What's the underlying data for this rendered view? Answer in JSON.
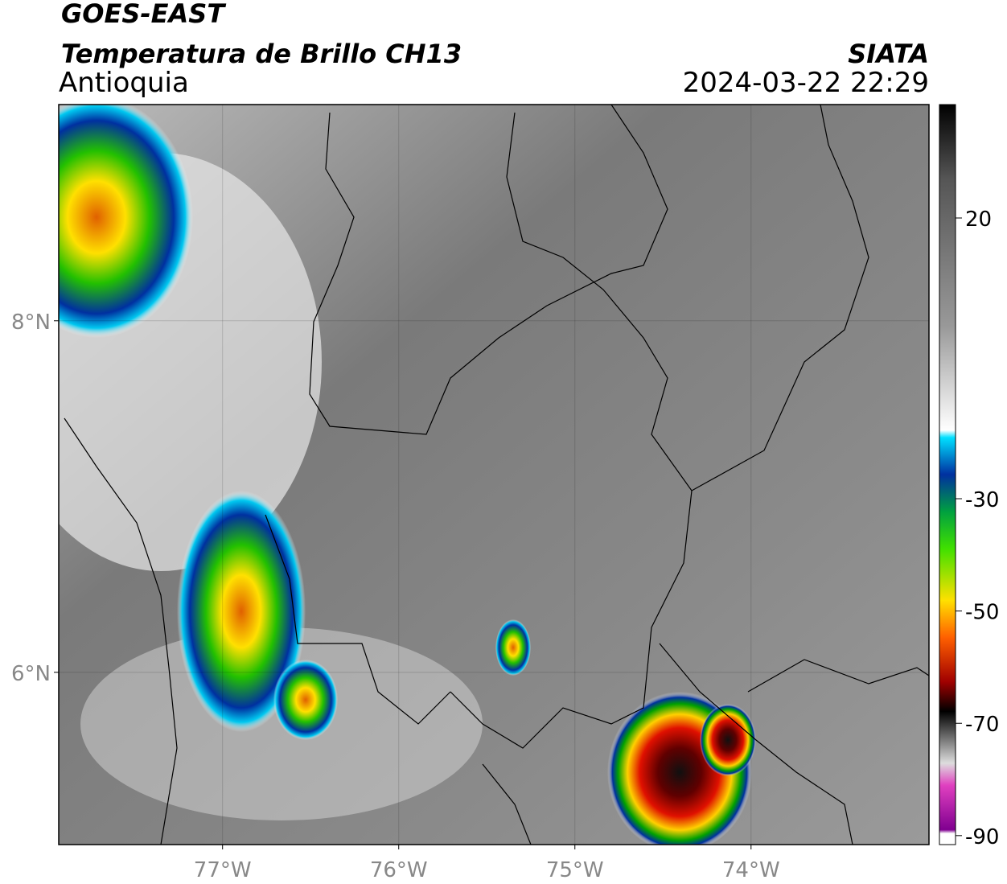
{
  "header": {
    "title": "GOES-EAST",
    "subtitle": "Temperatura de Brillo CH13",
    "region": "Antioquia",
    "source": "SIATA",
    "datetime": "2024-03-22 22:29"
  },
  "map": {
    "xlim": [
      -77.93,
      -72.99
    ],
    "ylim": [
      5.02,
      9.23
    ],
    "xticks": [
      {
        "value": -77,
        "label": "77°W"
      },
      {
        "value": -76,
        "label": "76°W"
      },
      {
        "value": -75,
        "label": "75°W"
      },
      {
        "value": -74,
        "label": "74°W"
      }
    ],
    "yticks": [
      {
        "value": 6,
        "label": "6°N"
      },
      {
        "value": 8,
        "label": "8°N"
      }
    ],
    "grid": true
  },
  "colorbar": {
    "lim": [
      -91.6,
      40.2
    ],
    "ticks": [
      20,
      -30,
      -50,
      -70,
      -90
    ]
  }
}
